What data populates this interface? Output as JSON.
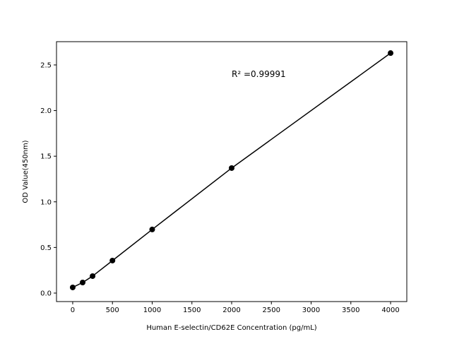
{
  "chart_data": {
    "type": "line",
    "title": "",
    "xlabel": "Human E-selectin/CD62E Concentration (pg/mL)",
    "ylabel": "OD Value(450nm)",
    "xlim": [
      -204,
      4204
    ],
    "ylim": [
      -0.093,
      2.755
    ],
    "xticks": [
      0,
      500,
      1000,
      1500,
      2000,
      2500,
      3000,
      3500,
      4000
    ],
    "xtick_labels": [
      "0",
      "500",
      "1000",
      "1500",
      "2000",
      "2500",
      "3000",
      "3500",
      "4000"
    ],
    "yticks": [
      0.0,
      0.5,
      1.0,
      1.5,
      2.0,
      2.5
    ],
    "ytick_labels": [
      "0.0",
      "0.5",
      "1.0",
      "1.5",
      "2.0",
      "2.5"
    ],
    "grid": false,
    "series": [
      {
        "x": [
          0,
          125,
          250,
          500,
          1000,
          2000,
          4000
        ],
        "y": [
          0.062,
          0.116,
          0.186,
          0.356,
          0.697,
          1.37,
          2.63
        ],
        "color": "#000000",
        "marker": "circle"
      }
    ],
    "annotation": "R² =0.99991"
  }
}
